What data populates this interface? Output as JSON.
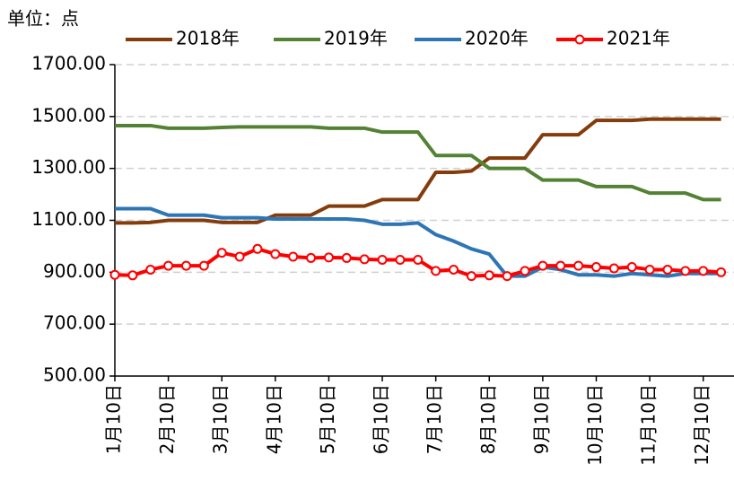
{
  "chart_data": {
    "type": "line",
    "unit_label": "单位：点",
    "categories": [
      "1月10日",
      null,
      null,
      "2月10日",
      null,
      null,
      "3月10日",
      null,
      null,
      "4月10日",
      null,
      null,
      "5月10日",
      null,
      null,
      "6月10日",
      null,
      null,
      "7月10日",
      null,
      null,
      "8月10日",
      null,
      null,
      "9月10日",
      null,
      null,
      "10月10日",
      null,
      null,
      "11月10日",
      null,
      null,
      "12月10日",
      null
    ],
    "ylim": [
      500,
      1700
    ],
    "yticks": [
      {
        "value": 500,
        "label": "500.00"
      },
      {
        "value": 700,
        "label": "700.00"
      },
      {
        "value": 900,
        "label": "900.00"
      },
      {
        "value": 1100,
        "label": "1100.00"
      },
      {
        "value": 1300,
        "label": "1300.00"
      },
      {
        "value": 1500,
        "label": "1500.00"
      },
      {
        "value": 1700,
        "label": "1700.00"
      }
    ],
    "grid": true,
    "series": [
      {
        "name": "2018年",
        "color": "#843c0c",
        "markers": false,
        "values": [
          1090,
          1090,
          1092,
          1100,
          1100,
          1100,
          1092,
          1092,
          1092,
          1120,
          1120,
          1120,
          1155,
          1155,
          1155,
          1180,
          1180,
          1180,
          1285,
          1285,
          1290,
          1340,
          1340,
          1340,
          1430,
          1430,
          1430,
          1485,
          1485,
          1485,
          1490,
          1490,
          1490,
          1490,
          1490
        ]
      },
      {
        "name": "2019年",
        "color": "#548235",
        "markers": false,
        "values": [
          1465,
          1465,
          1465,
          1455,
          1455,
          1455,
          1458,
          1460,
          1460,
          1460,
          1460,
          1460,
          1455,
          1455,
          1455,
          1440,
          1440,
          1440,
          1350,
          1350,
          1350,
          1300,
          1300,
          1300,
          1255,
          1255,
          1255,
          1230,
          1230,
          1230,
          1205,
          1205,
          1205,
          1180,
          1180
        ]
      },
      {
        "name": "2020年",
        "color": "#2e75b6",
        "markers": false,
        "values": [
          1145,
          1145,
          1145,
          1120,
          1120,
          1120,
          1110,
          1110,
          1110,
          1105,
          1105,
          1105,
          1105,
          1105,
          1100,
          1085,
          1085,
          1090,
          1045,
          1020,
          990,
          970,
          885,
          885,
          920,
          910,
          890,
          890,
          885,
          895,
          890,
          885,
          895,
          895,
          895
        ]
      },
      {
        "name": "2021年",
        "color": "#ff0000",
        "markers": true,
        "values": [
          890,
          888,
          910,
          925,
          925,
          925,
          975,
          960,
          990,
          970,
          960,
          955,
          957,
          955,
          950,
          948,
          948,
          948,
          905,
          910,
          885,
          888,
          885,
          905,
          925,
          925,
          925,
          920,
          915,
          920,
          910,
          910,
          905,
          905,
          900
        ]
      }
    ]
  }
}
